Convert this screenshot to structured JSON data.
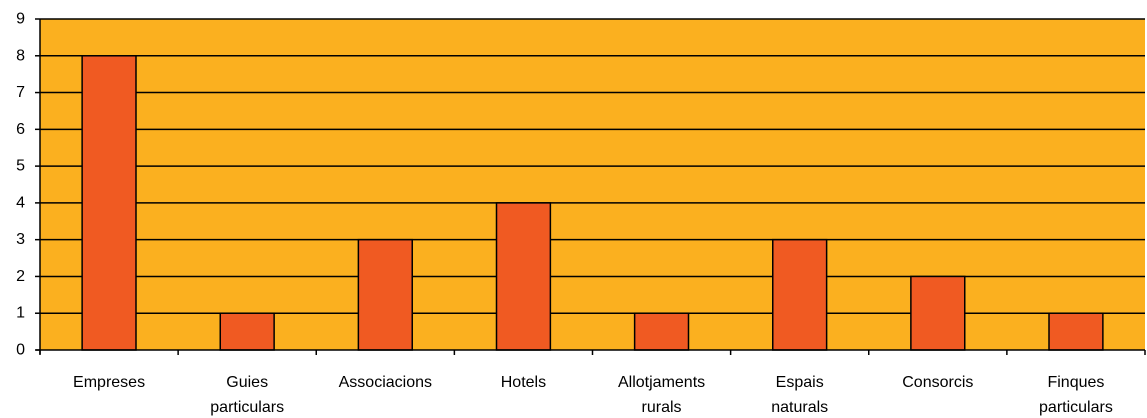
{
  "chart_data": {
    "type": "bar",
    "title": "",
    "xlabel": "",
    "ylabel": "",
    "categories": [
      "Empreses",
      "Guies particulars",
      "Associacions",
      "Hotels",
      "Allotjaments rurals",
      "Espais naturals",
      "Consorcis",
      "Finques particulars"
    ],
    "category_lines": [
      [
        "Empreses"
      ],
      [
        "Guies",
        "particulars"
      ],
      [
        "Associacions"
      ],
      [
        "Hotels"
      ],
      [
        "Allotjaments",
        "rurals"
      ],
      [
        "Espais",
        "naturals"
      ],
      [
        "Consorcis"
      ],
      [
        "Finques",
        "particulars"
      ]
    ],
    "values": [
      8,
      1,
      3,
      4,
      1,
      3,
      2,
      1
    ],
    "ylim": [
      0,
      9
    ],
    "yticks": [
      0,
      1,
      2,
      3,
      4,
      5,
      6,
      7,
      8,
      9
    ],
    "grid": true,
    "colors": {
      "plot_background": "#FBB01F",
      "bar_fill": "#F05A22",
      "bar_stroke": "#000000",
      "gridline": "#000000",
      "axis": "#000000"
    }
  }
}
